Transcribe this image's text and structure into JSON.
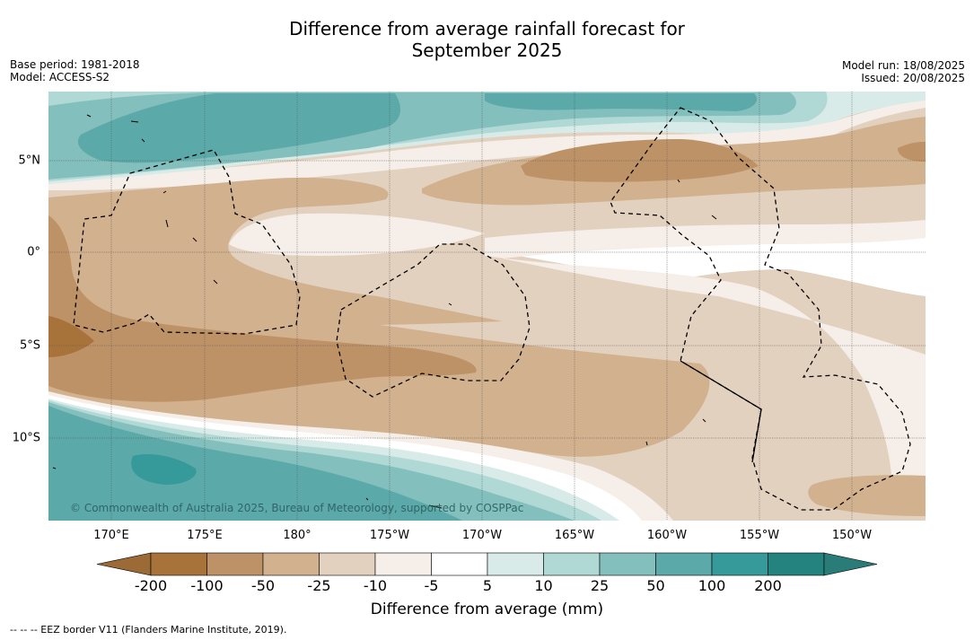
{
  "title_line1": "Difference from average rainfall forecast for",
  "title_line2": "September 2025",
  "meta_left": {
    "base_period": "Base period: 1981-2018",
    "model": "Model: ACCESS-S2"
  },
  "meta_right": {
    "model_run": "Model run: 18/08/2025",
    "issued": "Issued: 20/08/2025"
  },
  "copyright": "© Commonwealth of Australia 2025, Bureau of Meteorology, supported by COSPPac",
  "lon_labels": [
    "170°E",
    "175°E",
    "180°",
    "175°W",
    "170°W",
    "165°W",
    "160°W",
    "155°W",
    "150°W"
  ],
  "lat_labels": [
    "5°N",
    "0°",
    "5°S",
    "10°S"
  ],
  "colorbar": {
    "title": "Difference from average (mm)",
    "tick_labels": [
      "-200",
      "-100",
      "-50",
      "-25",
      "-10",
      "-5",
      "5",
      "10",
      "25",
      "50",
      "100",
      "200"
    ],
    "colors": [
      "#a8733a",
      "#be9267",
      "#d2b18f",
      "#e3d1bf",
      "#f5eee9",
      "#ffffff",
      "#d8ebe8",
      "#b0d8d5",
      "#82bfbd",
      "#5ba9a9",
      "#36999a",
      "#24827f"
    ],
    "underflow_color": "#9c6a36",
    "overflow_color": "#2a7c78"
  },
  "footer": "--  --  -- EEZ border V11 (Flanders Marine Institute, 2019)."
}
